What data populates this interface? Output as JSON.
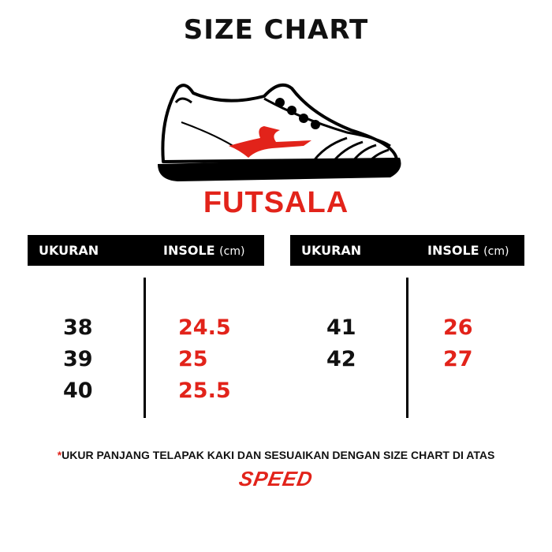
{
  "title": "SIZE CHART",
  "model": "FUTSALA",
  "colors": {
    "accent": "#e2231a",
    "text": "#111111",
    "header_bg": "#000000"
  },
  "tables": [
    {
      "header": {
        "size_label": "UKURAN",
        "insole_label": "INSOLE",
        "unit": "(cm)"
      },
      "rows": [
        {
          "size": "38",
          "insole": "24.5"
        },
        {
          "size": "39",
          "insole": "25"
        },
        {
          "size": "40",
          "insole": "25.5"
        }
      ]
    },
    {
      "header": {
        "size_label": "UKURAN",
        "insole_label": "INSOLE",
        "unit": "(cm)"
      },
      "rows": [
        {
          "size": "41",
          "insole": "26"
        },
        {
          "size": "42",
          "insole": "27"
        }
      ]
    }
  ],
  "note": {
    "asterisk": "*",
    "text": "UKUR PANJANG TELAPAK KAKI DAN SESUAIKAN DENGAN SIZE CHART DI ATAS"
  },
  "brand_logo": "SPEED",
  "shoe_icon": "sneaker-illustration"
}
